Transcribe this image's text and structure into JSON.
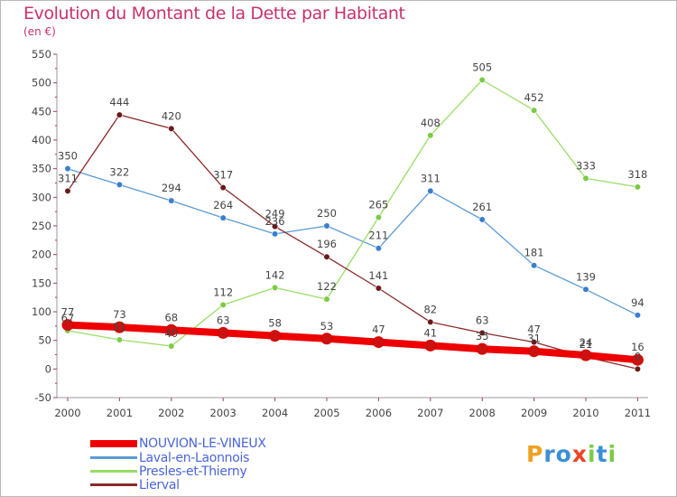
{
  "header": {
    "title": "Evolution du Montant de la Dette par Habitant",
    "unit": "(en €)"
  },
  "brand": {
    "text": "Proxiti"
  },
  "chart_data": {
    "type": "line",
    "title": "Evolution du Montant de la Dette par Habitant",
    "subtitle": "(en €)",
    "categories": [
      "2000",
      "2001",
      "2002",
      "2003",
      "2004",
      "2005",
      "2006",
      "2007",
      "2008",
      "2009",
      "2010",
      "2011"
    ],
    "ylim": [
      -50,
      550
    ],
    "yticks": [
      -50,
      0,
      50,
      100,
      150,
      200,
      250,
      300,
      350,
      400,
      450,
      500,
      550
    ],
    "grid": false,
    "legend_position": "bottom-left",
    "series": [
      {
        "name": "NOUVION-LE-VINEUX",
        "color": "#ee0000",
        "dot": "#cc1111",
        "width": 8,
        "values": [
          77,
          73,
          68,
          63,
          58,
          53,
          47,
          41,
          35,
          31,
          24,
          16
        ]
      },
      {
        "name": "Laval-en-Laonnois",
        "color": "#5b9bd5",
        "dot": "#3a7fcf",
        "width": 1.3,
        "values": [
          350,
          322,
          294,
          264,
          236,
          250,
          211,
          311,
          261,
          181,
          139,
          94
        ]
      },
      {
        "name": "Presles-et-Thierny",
        "color": "#99dd66",
        "dot": "#7acc44",
        "width": 1.3,
        "values": [
          67,
          51,
          40,
          112,
          142,
          122,
          265,
          408,
          505,
          452,
          333,
          318
        ]
      },
      {
        "name": "Lierval",
        "color": "#8b2a2a",
        "dot": "#6b1a1a",
        "width": 1.3,
        "values": [
          311,
          444,
          420,
          317,
          249,
          196,
          141,
          82,
          63,
          47,
          21,
          0
        ]
      }
    ],
    "value_labels": [
      [
        "77",
        "73",
        "68",
        "63",
        "58",
        "53",
        "47",
        "41",
        "35",
        "31",
        "24",
        "16"
      ],
      [
        "350",
        "322",
        "294",
        "264",
        "236",
        "250",
        "211",
        "311",
        "261",
        "181",
        "139",
        "94"
      ],
      [
        "67",
        "51",
        "40",
        "112",
        "142",
        "122",
        "265",
        "408",
        "505",
        "452",
        "333",
        "318"
      ],
      [
        "311",
        "444",
        "420",
        "317",
        "249",
        "196",
        "141",
        "82",
        "63",
        "47",
        "21",
        "0"
      ]
    ]
  }
}
